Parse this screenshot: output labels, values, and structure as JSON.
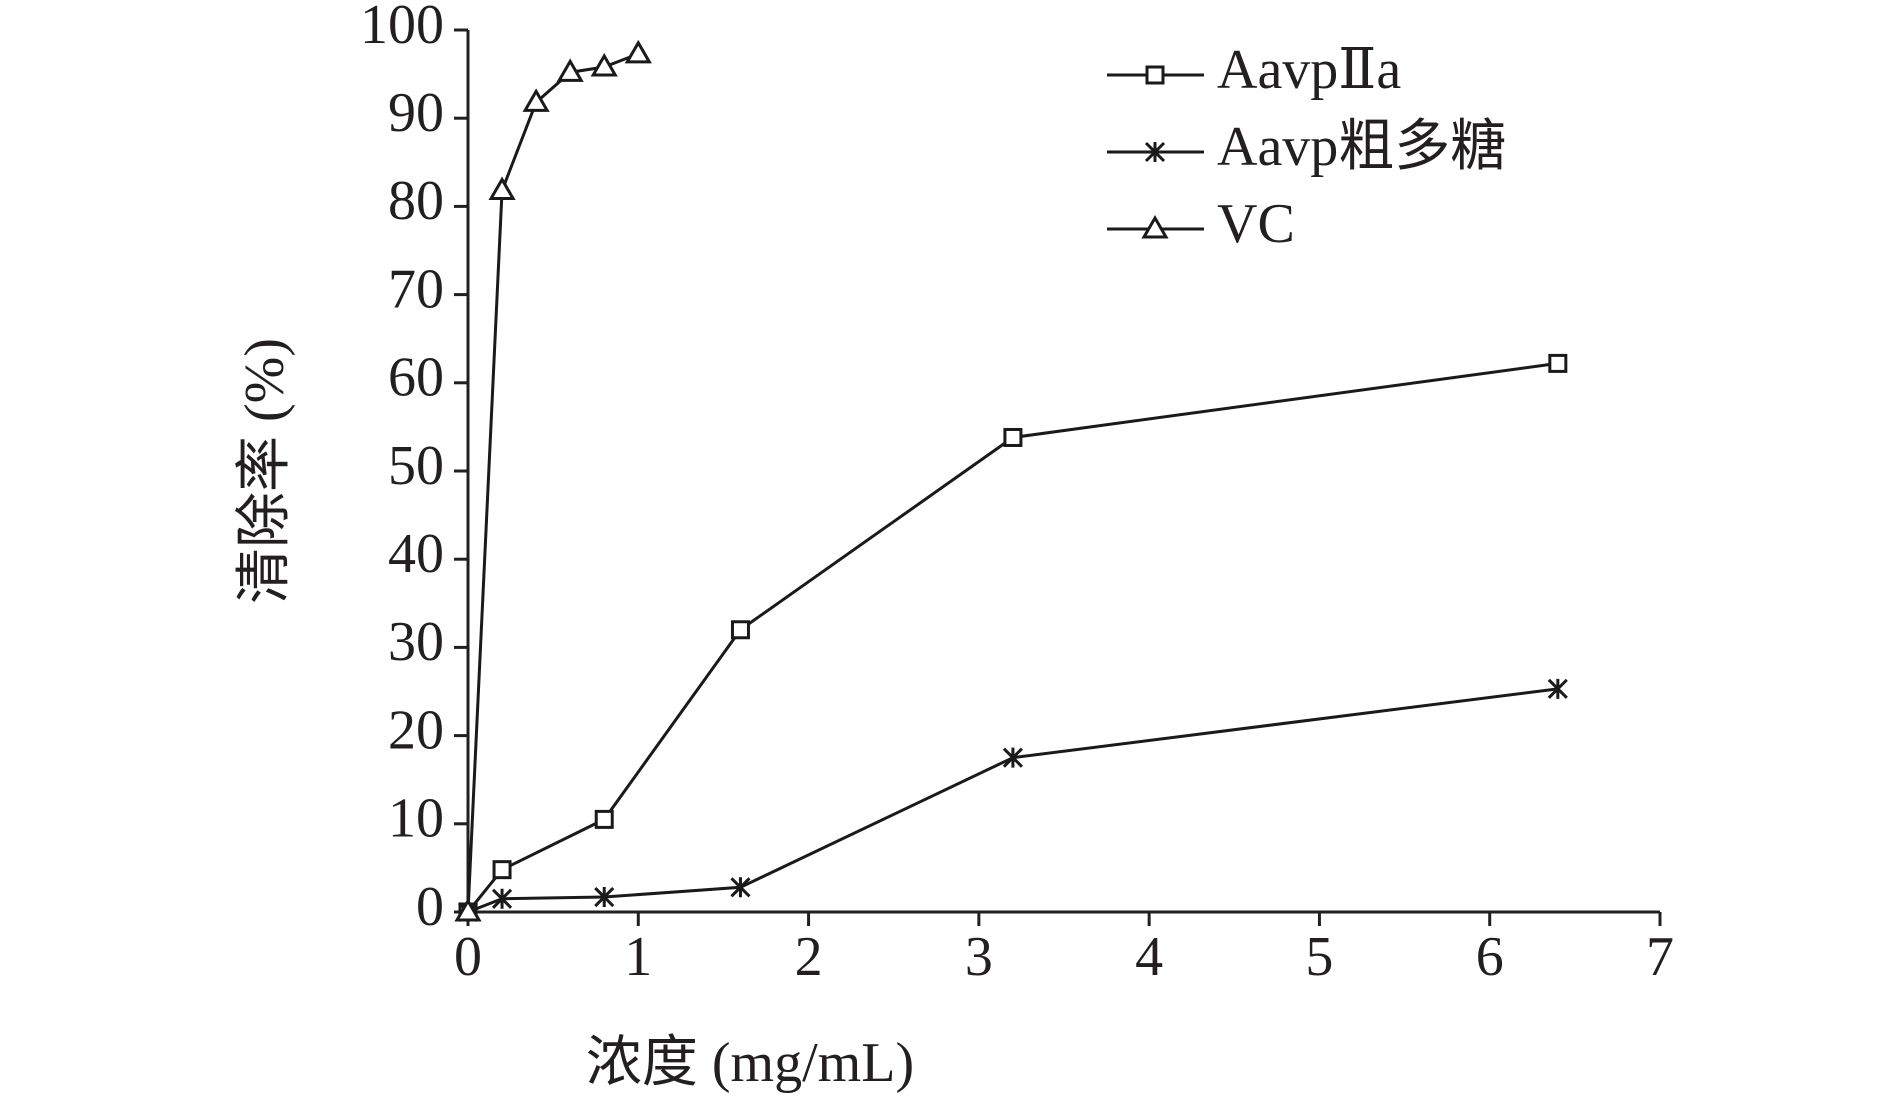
{
  "chart_data": {
    "type": "line",
    "x_label": "浓度 (mg/mL)",
    "y_label": "清除率 (%)",
    "xlim": [
      0,
      7
    ],
    "xticks": [
      0,
      1,
      2,
      3,
      4,
      5,
      6,
      7
    ],
    "ylim": [
      0,
      100
    ],
    "yticks": [
      0,
      10,
      20,
      30,
      40,
      50,
      60,
      70,
      80,
      90,
      100
    ],
    "legend": "top-right",
    "series": [
      {
        "name": "AavpⅡa",
        "color": "#1a1a1a",
        "marker": "square",
        "x": [
          0,
          0.2,
          0.8,
          1.6,
          3.2,
          6.4
        ],
        "values": [
          0,
          4.8,
          10.5,
          32,
          53.8,
          62.2
        ]
      },
      {
        "name": "Aavp粗多糖",
        "color": "#1a1a1a",
        "marker": "star",
        "x": [
          0,
          0.2,
          0.8,
          1.6,
          3.2,
          6.4
        ],
        "values": [
          0,
          1.5,
          1.7,
          2.8,
          17.5,
          25.3
        ]
      },
      {
        "name": "VC",
        "color": "#1a1a1a",
        "marker": "triangle",
        "x": [
          0,
          0.2,
          0.4,
          0.6,
          0.8,
          1.0
        ],
        "values": [
          0,
          81.8,
          91.8,
          95.2,
          95.8,
          97.3
        ]
      }
    ]
  }
}
